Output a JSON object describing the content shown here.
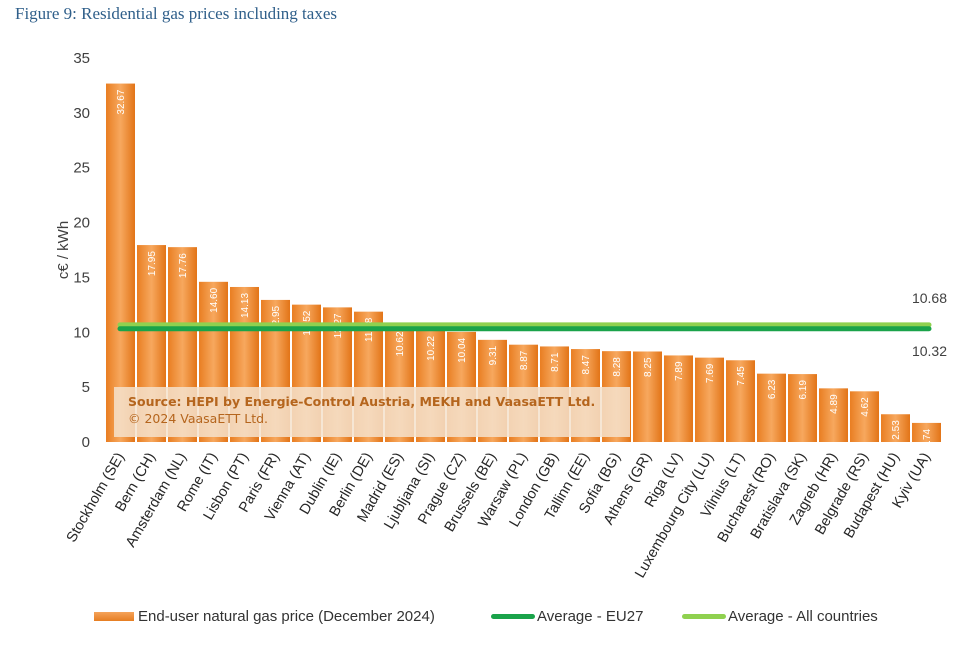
{
  "figure_title": "Figure 9: Residential gas prices including taxes",
  "source": {
    "main": "Source: HEPI by Energie-Control Austria, MEKH and VaasaETT Ltd.",
    "copyright": "© 2024 VaasaETT Ltd."
  },
  "colors": {
    "bar": "#e67e22",
    "bar_light": "#f7a85e",
    "eu27": "#1aa34a",
    "all_countries": "#8fd14f",
    "title": "#2f5f8a"
  },
  "chart_data": {
    "type": "bar",
    "ylabel": "c€ /  kWh",
    "ylim": [
      0,
      35
    ],
    "yticks": [
      0,
      5,
      10,
      15,
      20,
      25,
      30,
      35
    ],
    "grid": false,
    "legend_position": "bottom",
    "categories": [
      "Stockholm (SE)",
      "Bern (CH)",
      "Amsterdam (NL)",
      "Rome (IT)",
      "Lisbon (PT)",
      "Paris (FR)",
      "Vienna (AT)",
      "Dublin (IE)",
      "Berlin (DE)",
      "Madrid (ES)",
      "Ljubljana (SI)",
      "Prague (CZ)",
      "Brussels (BE)",
      "Warsaw (PL)",
      "London (GB)",
      "Tallinn (EE)",
      "Sofia (BG)",
      "Athens (GR)",
      "Riga (LV)",
      "Luxembourg City (LU)",
      "Vilnius (LT)",
      "Bucharest (RO)",
      "Bratislava (SK)",
      "Zagreb (HR)",
      "Belgrade (RS)",
      "Budapest (HU)",
      "Kyiv (UA)"
    ],
    "series": [
      {
        "name": "End-user natural gas price (December 2024)",
        "values": [
          32.67,
          17.95,
          17.76,
          14.6,
          14.13,
          12.95,
          12.52,
          12.27,
          11.88,
          10.62,
          10.22,
          10.04,
          9.31,
          8.87,
          8.71,
          8.47,
          8.28,
          8.25,
          7.89,
          7.69,
          7.45,
          6.23,
          6.19,
          4.89,
          4.62,
          2.53,
          1.74
        ],
        "labels": [
          "32.67",
          "17.95",
          "17.76",
          "14.60",
          "14.13",
          "12.95",
          "12.52",
          "12.27",
          "11.88",
          "10.62",
          "10.22",
          "10.04",
          "9.31",
          "8.87",
          "8.71",
          "8.47",
          "8.28",
          "8.25",
          "7.89",
          "7.69",
          "7.45",
          "6.23",
          "6.19",
          "4.89",
          "4.62",
          "2.53",
          "1.74"
        ]
      }
    ],
    "averages": [
      {
        "name": "Average - EU27",
        "value": 10.32,
        "label": "10.32"
      },
      {
        "name": "Average - All countries",
        "value": 10.68,
        "label": "10.68"
      }
    ]
  }
}
